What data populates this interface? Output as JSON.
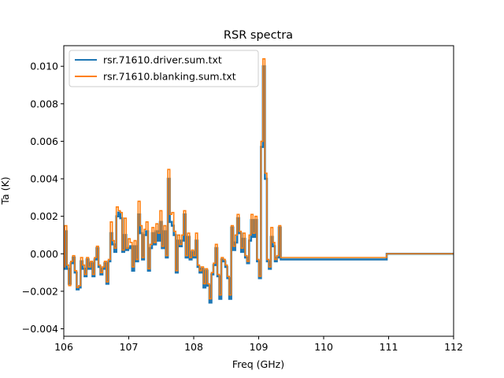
{
  "chart_data": {
    "type": "line",
    "title": "RSR spectra",
    "xlabel": "Freq  (GHz)",
    "ylabel": "Ta (K)",
    "xlim": [
      106,
      112
    ],
    "ylim": [
      -0.0044,
      0.0111
    ],
    "xticks": [
      106,
      107,
      108,
      109,
      110,
      111,
      112
    ],
    "xtick_labels": [
      "106",
      "107",
      "108",
      "109",
      "110",
      "111",
      "112"
    ],
    "yticks": [
      -0.004,
      -0.002,
      0.0,
      0.002,
      0.004,
      0.006,
      0.008,
      0.01
    ],
    "ytick_labels": [
      "−0.004",
      "−0.002",
      "0.000",
      "0.002",
      "0.004",
      "0.006",
      "0.008",
      "0.010"
    ],
    "grid": false,
    "legend_position": "top-left",
    "drawstyle": "steps-mid",
    "x_start": 106.0,
    "x_step": 0.0305,
    "data_end_x": 110.97,
    "flat_until_x": 112.0,
    "series": [
      {
        "name": "rsr.71610.driver.sum.txt",
        "color": "#1f77b4",
        "values": [
          -0.0008,
          0.0012,
          -0.0008,
          -0.0016,
          -0.0005,
          -0.0002,
          -0.001,
          -0.0019,
          -0.0018,
          -0.0004,
          -0.0008,
          -0.0012,
          -0.0003,
          -0.0008,
          -0.0005,
          -0.0012,
          -0.0003,
          0.0003,
          -0.0007,
          -0.0011,
          -0.0008,
          -0.0005,
          -0.0016,
          -0.0004,
          0.0011,
          0.0005,
          0.0001,
          0.002,
          0.0022,
          0.0019,
          0.0001,
          0.001,
          0.0002,
          0.0003,
          0.0004,
          -0.0009,
          0.0004,
          -0.0004,
          0.0021,
          0.0011,
          -0.0003,
          0.001,
          0.0012,
          -0.0009,
          0.0003,
          0.0011,
          0.0005,
          0.0012,
          0.0007,
          0.0017,
          0.0003,
          0.0012,
          -0.0002,
          0.004,
          0.0017,
          0.0015,
          0.001,
          -0.001,
          0.0007,
          0.0004,
          0.0007,
          0.0021,
          -0.0002,
          0.0009,
          -0.0003,
          0.0001,
          -0.0002,
          0.0007,
          -0.0007,
          -0.001,
          -0.0008,
          -0.0018,
          -0.0009,
          -0.0017,
          -0.0026,
          -0.0011,
          -0.0006,
          0.0003,
          -0.0012,
          -0.0024,
          -0.0003,
          -0.0004,
          -0.0007,
          -0.0013,
          -0.0024,
          0.0014,
          0.0002,
          0.0006,
          0.0019,
          0.0011,
          0.0001,
          0.0008,
          -0.0002,
          -0.0005,
          0.0007,
          0.0018,
          0.0009,
          0.0018,
          -0.0004,
          -0.0013,
          0.0057,
          0.01,
          0.004,
          -0.0004,
          -0.0008,
          0.0009,
          0.0004,
          -0.0004,
          -0.0002,
          0.0014,
          -0.0003
        ]
      },
      {
        "name": "rsr.71610.blanking.sum.txt",
        "color": "#ff7f0e",
        "values": [
          -0.0007,
          0.0015,
          -0.0006,
          -0.0017,
          -0.0004,
          -0.0001,
          -0.0009,
          -0.0018,
          -0.0017,
          -0.0002,
          -0.0006,
          -0.0011,
          -0.0002,
          -0.0007,
          -0.0004,
          -0.0011,
          -0.0002,
          0.0004,
          -0.0006,
          -0.001,
          -0.0007,
          -0.0004,
          -0.0015,
          -0.0003,
          0.0017,
          0.0007,
          0.0003,
          0.0025,
          0.0023,
          0.0022,
          0.0002,
          0.0019,
          0.0003,
          0.0008,
          0.0006,
          -0.0007,
          0.0007,
          -0.0003,
          0.0028,
          0.0015,
          -0.0002,
          0.0013,
          0.0017,
          -0.0008,
          0.0005,
          0.0014,
          0.0006,
          0.0016,
          0.0011,
          0.0023,
          0.0004,
          0.0015,
          -0.0001,
          0.0045,
          0.0021,
          0.0022,
          0.0012,
          -0.0009,
          0.001,
          0.0005,
          0.001,
          0.0023,
          -0.0001,
          0.0011,
          -0.0002,
          0.0002,
          -0.0001,
          0.0011,
          -0.0006,
          -0.0009,
          -0.0007,
          -0.0016,
          -0.0008,
          -0.0016,
          -0.0024,
          -0.001,
          -0.0005,
          0.0005,
          -0.0011,
          -0.0022,
          -0.0002,
          -0.0003,
          -0.0006,
          -0.0012,
          -0.0022,
          0.0015,
          0.0004,
          0.001,
          0.0021,
          0.0012,
          0.0003,
          0.0011,
          -0.0001,
          -0.0004,
          0.001,
          0.0021,
          0.0011,
          0.002,
          -0.0003,
          -0.0012,
          0.006,
          0.0104,
          0.0043,
          -0.0003,
          -0.0007,
          0.0014,
          0.0006,
          -0.0003,
          -0.0001,
          0.0015,
          -0.0002
        ]
      }
    ]
  }
}
